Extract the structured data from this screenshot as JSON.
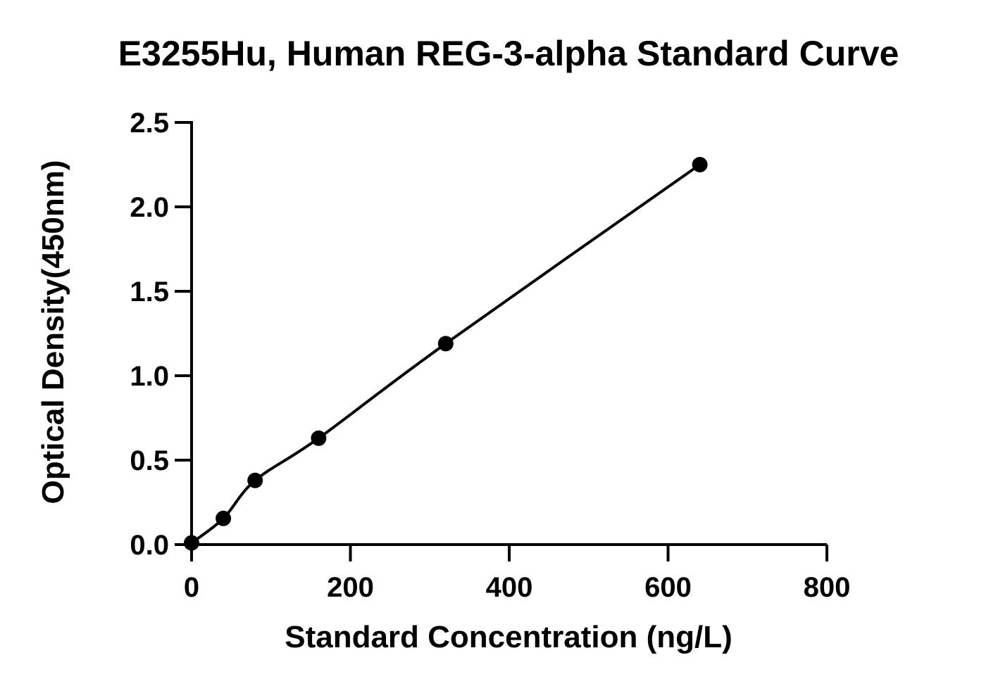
{
  "chart_data": {
    "type": "scatter",
    "title": "E3255Hu, Human REG-3-alpha Standard Curve",
    "xlabel": "Standard Concentration (ng/L)",
    "ylabel": "Optical Density(450nm)",
    "xlim": [
      0,
      800
    ],
    "ylim": [
      0,
      2.5
    ],
    "x_ticks": [
      "0",
      "200",
      "400",
      "600",
      "800"
    ],
    "y_ticks": [
      "0.0",
      "0.5",
      "1.0",
      "1.5",
      "2.0",
      "2.5"
    ],
    "grid": false,
    "legend": "none",
    "series": [
      {
        "x": [
          0,
          40,
          80,
          160,
          320,
          640
        ],
        "y": [
          0.01,
          0.155,
          0.38,
          0.63,
          1.19,
          2.25
        ]
      }
    ],
    "fit": "smooth standard curve through points",
    "colors": {
      "points": "#000000",
      "curve": "#000000",
      "axes": "#000000"
    }
  }
}
